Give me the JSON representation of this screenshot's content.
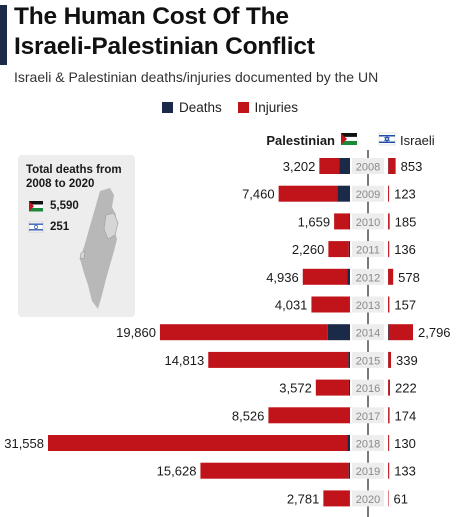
{
  "header": {
    "title_line1": "The Human Cost Of The",
    "title_line2": "Israeli-Palestinian Conflict",
    "subtitle": "Israeli & Palestinian deaths/injuries documented by the UN"
  },
  "legend": {
    "deaths": "Deaths",
    "injuries": "Injuries"
  },
  "columns": {
    "palestinian": "Palestinian",
    "israeli": "Israeli"
  },
  "inset": {
    "title": "Total deaths from 2008 to 2020",
    "palestinian_total": "5,590",
    "israeli_total": "251"
  },
  "colors": {
    "deaths": "#1c2a4a",
    "injuries": "#c0141a",
    "spine": "#222222",
    "year_box": "#ededed"
  },
  "chart_data": {
    "type": "bar",
    "categories": [
      "2008",
      "2009",
      "2010",
      "2011",
      "2012",
      "2013",
      "2014",
      "2015",
      "2016",
      "2017",
      "2018",
      "2019",
      "2020"
    ],
    "series": [
      {
        "name": "Palestinian",
        "values": [
          3202,
          7460,
          1659,
          2260,
          4936,
          4031,
          19860,
          14813,
          3572,
          8526,
          31558,
          15628,
          2781
        ],
        "labels": [
          "3,202",
          "7,460",
          "1,659",
          "2,260",
          "4,936",
          "4,031",
          "19,860",
          "14,813",
          "3,572",
          "8,526",
          "31,558",
          "15,628",
          "2,781"
        ]
      },
      {
        "name": "Israeli",
        "values": [
          853,
          123,
          185,
          136,
          578,
          157,
          2796,
          339,
          222,
          174,
          130,
          133,
          61
        ],
        "labels": [
          "853",
          "123",
          "185",
          "136",
          "578",
          "157",
          "2,796",
          "339",
          "222",
          "174",
          "130",
          "133",
          "61"
        ]
      }
    ],
    "palestinian_deaths_estimated": [
      1100,
      1300,
      95,
      120,
      260,
      40,
      2330,
      170,
      110,
      75,
      300,
      140,
      30
    ],
    "israeli_deaths_estimated": [
      35,
      9,
      9,
      11,
      6,
      6,
      80,
      26,
      13,
      15,
      14,
      10,
      3
    ]
  }
}
